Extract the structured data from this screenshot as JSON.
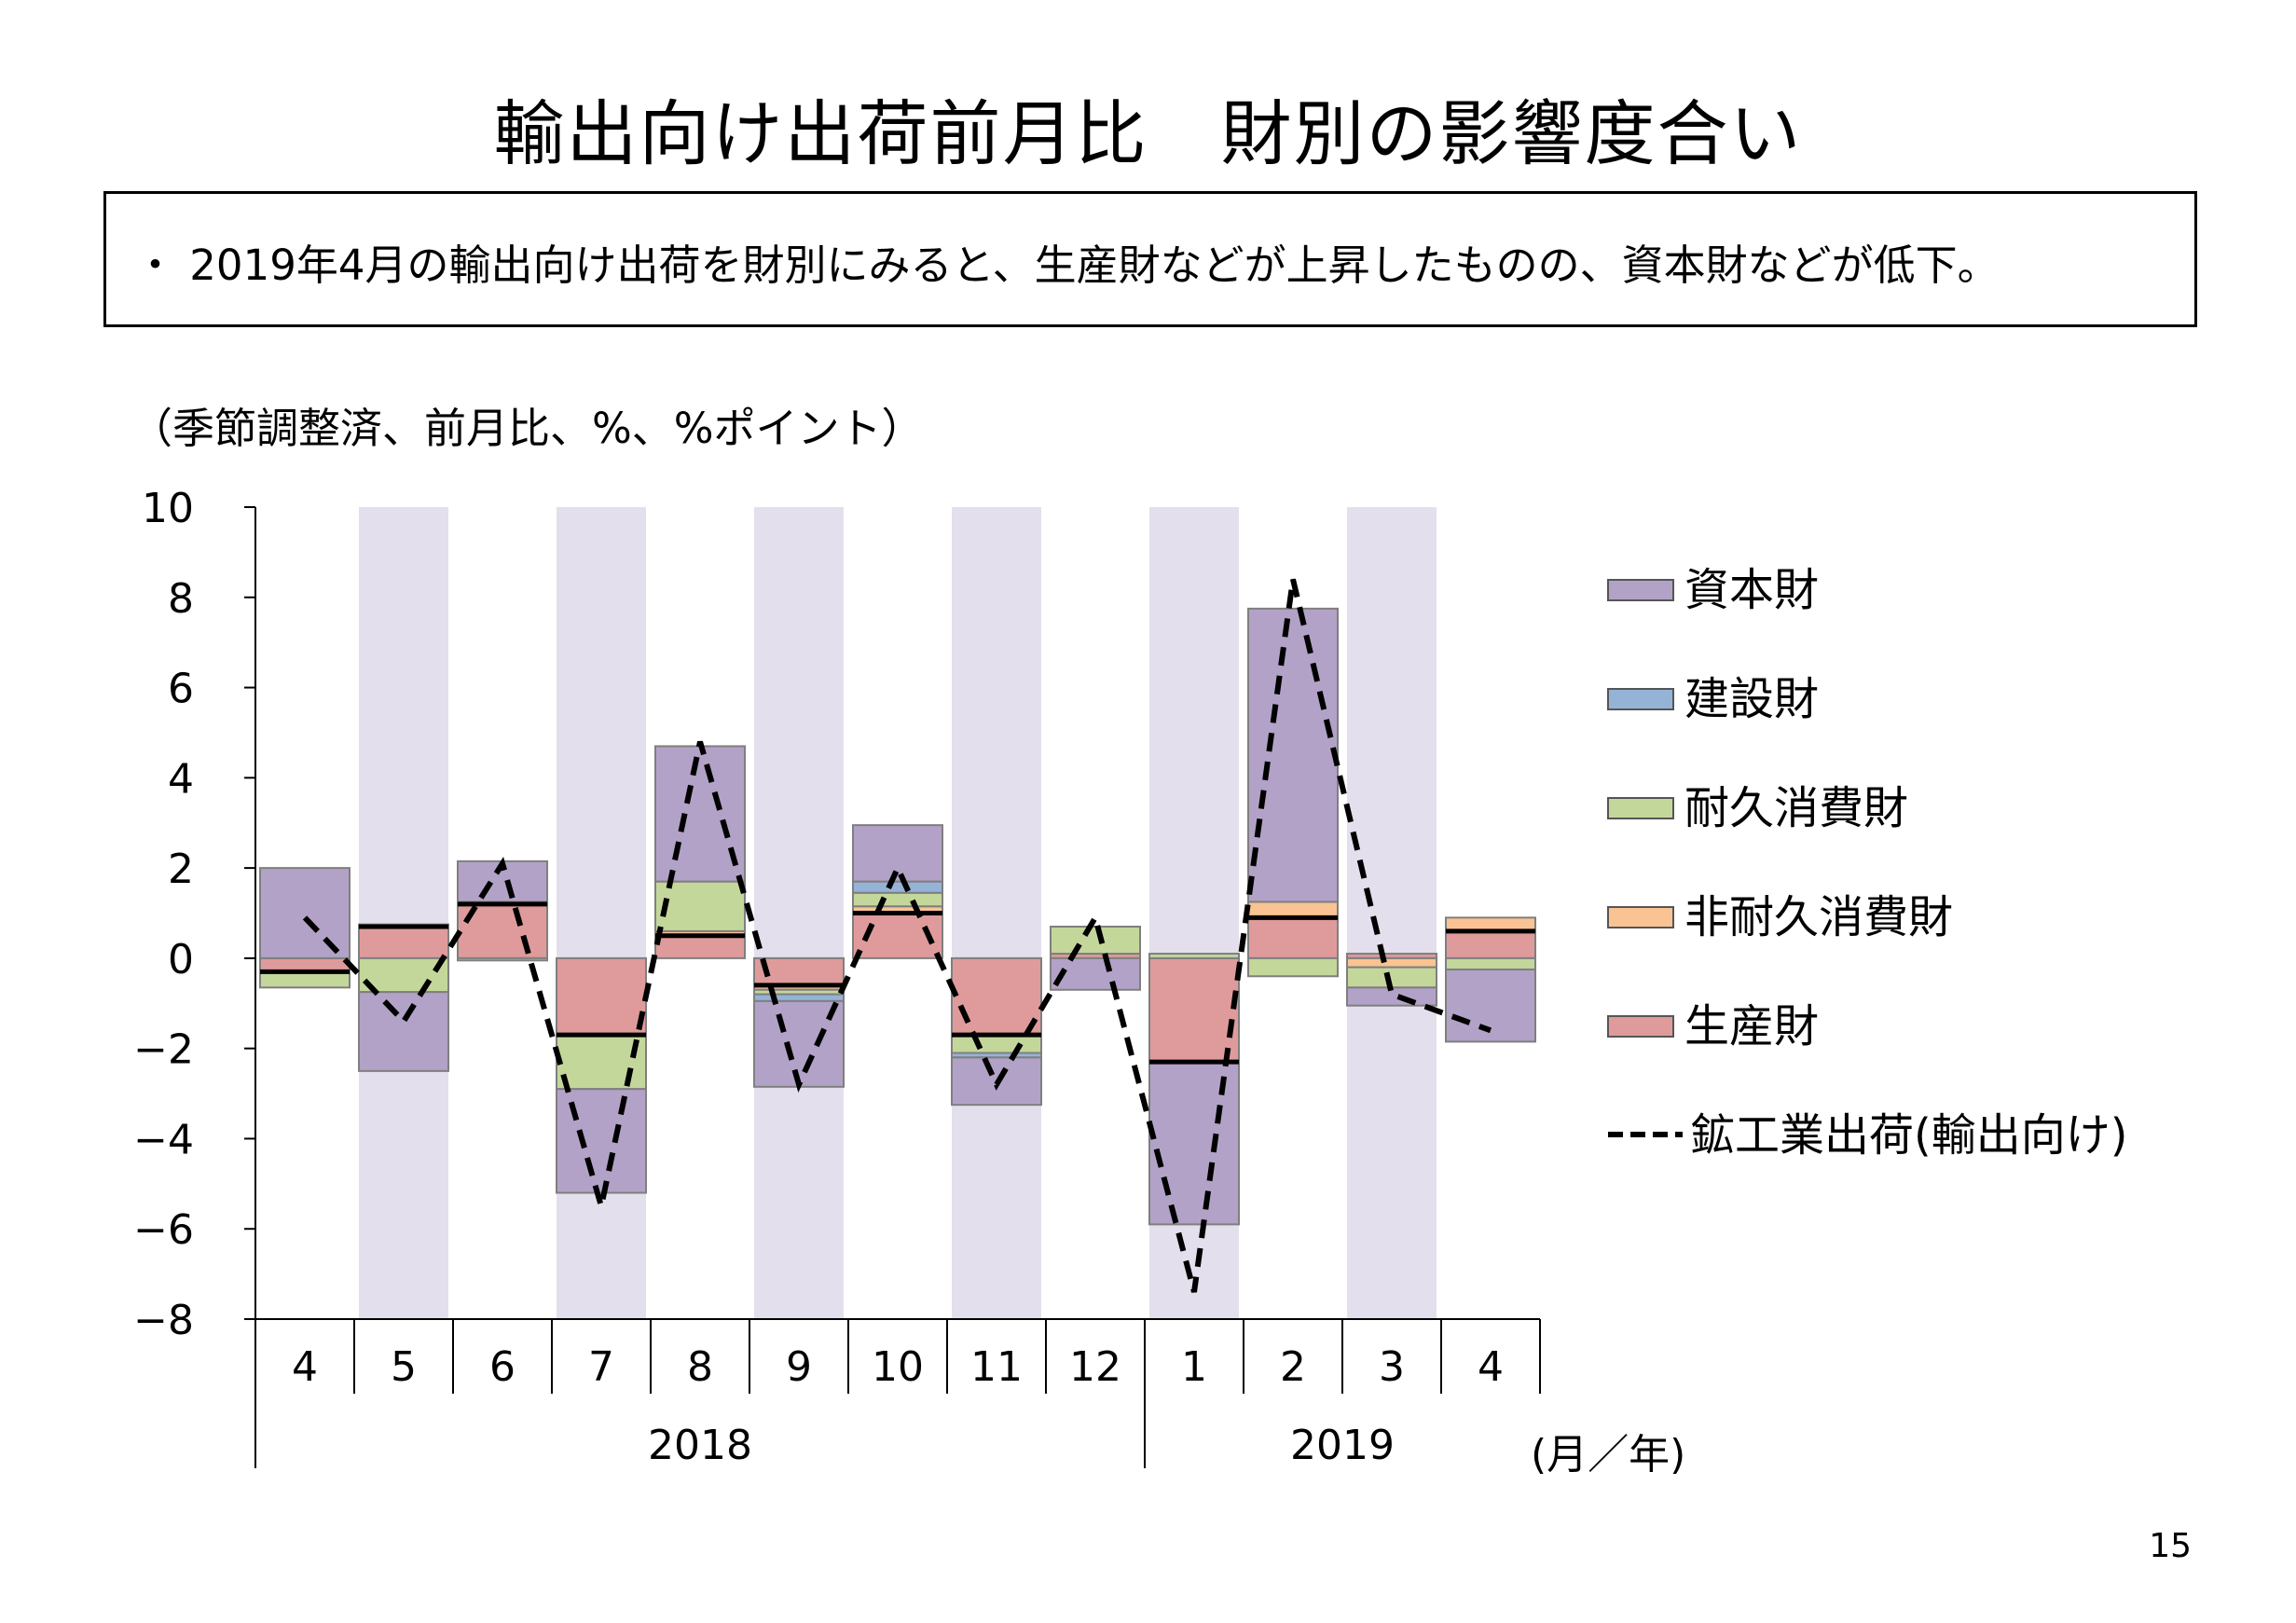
{
  "title": "輸出向け出荷前月比　財別の影響度合い",
  "summary": "・ 2019年4月の輸出向け出荷を財別にみると、生産財などが上昇したものの、資本財などが低下。",
  "unit_note": "（季節調整済、前月比、%、%ポイント）",
  "page_number": "15",
  "chart_data": {
    "type": "bar",
    "stacked": true,
    "ylim": [
      -8,
      10
    ],
    "yticks": [
      "10",
      "8",
      "6",
      "4",
      "2",
      "0",
      "−2",
      "−4",
      "−6",
      "−8"
    ],
    "ytick_values": [
      10,
      8,
      6,
      4,
      2,
      0,
      -2,
      -4,
      -6,
      -8
    ],
    "categories": [
      "4",
      "5",
      "6",
      "7",
      "8",
      "9",
      "10",
      "11",
      "12",
      "1",
      "2",
      "3",
      "4"
    ],
    "year_groups": [
      {
        "label": "2018",
        "count": 9
      },
      {
        "label": "2019",
        "count": 4
      }
    ],
    "x_unit": "(月／年)",
    "shaded_columns": [
      1,
      3,
      5,
      7,
      9,
      11
    ],
    "shade_color": "#e4dfec",
    "series": [
      {
        "name": "生産財",
        "color": "#df9b9b",
        "values": [
          -0.3,
          0.7,
          1.2,
          -1.7,
          0.5,
          -0.6,
          1.0,
          -1.7,
          0.1,
          -2.3,
          0.9,
          0.1,
          0.6
        ]
      },
      {
        "name": "非耐久消費財",
        "color": "#f9c393",
        "values": [
          0.0,
          0.05,
          0.05,
          0.0,
          0.1,
          -0.1,
          0.15,
          0.0,
          0.0,
          0.0,
          0.35,
          -0.2,
          0.3
        ]
      },
      {
        "name": "耐久消費財",
        "color": "#c4d79b",
        "values": [
          -0.35,
          -0.75,
          -0.05,
          -1.2,
          1.1,
          -0.1,
          0.3,
          -0.4,
          0.6,
          0.1,
          -0.4,
          -0.45,
          -0.25
        ]
      },
      {
        "name": "建設財",
        "color": "#95b3d7",
        "values": [
          0.0,
          0.0,
          0.0,
          0.0,
          0.0,
          -0.15,
          0.25,
          -0.1,
          0.0,
          0.0,
          0.0,
          0.0,
          0.0
        ]
      },
      {
        "name": "資本財",
        "color": "#b3a2c7",
        "values": [
          2.0,
          -1.75,
          0.9,
          -2.3,
          3.0,
          -1.9,
          1.25,
          -1.05,
          -0.7,
          -3.6,
          6.5,
          -0.4,
          -1.6
        ]
      }
    ],
    "line": {
      "name": "鉱工業出荷(輸出向け)",
      "style": "dashed",
      "color": "#000000",
      "values": [
        0.9,
        -1.4,
        2.1,
        -5.5,
        4.8,
        -2.8,
        2.0,
        -2.8,
        0.9,
        -7.4,
        8.4,
        -0.8,
        -1.6
      ]
    },
    "legend": [
      "資本財",
      "建設財",
      "耐久消費財",
      "非耐久消費財",
      "生産財",
      "鉱工業出荷(輸出向け)"
    ],
    "legend_colors": [
      "#b3a2c7",
      "#95b3d7",
      "#c4d79b",
      "#f9c393",
      "#df9b9b",
      "#000000"
    ],
    "legend_placement": "right"
  }
}
